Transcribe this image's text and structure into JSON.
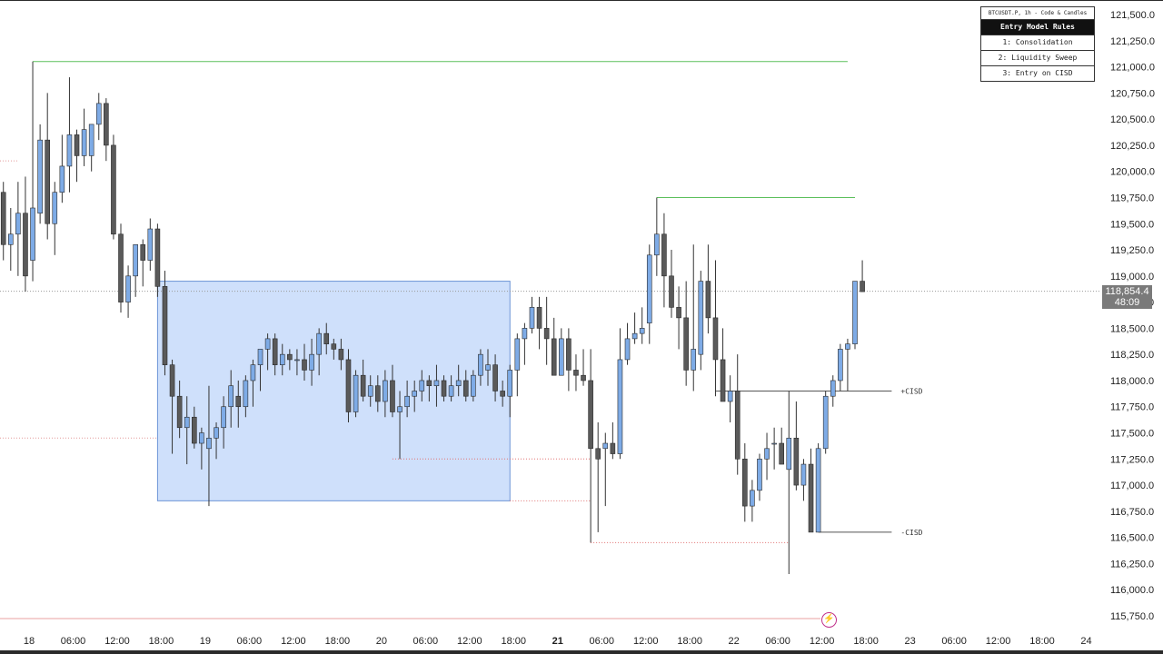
{
  "chart_data": {
    "type": "candlestick",
    "title": "BTCUSDT.P, 1h - Code & Candles",
    "ylim": [
      115750,
      121500
    ],
    "y_ticks": [
      "121,500.0",
      "121,250.0",
      "121,000.0",
      "120,750.0",
      "120,500.0",
      "120,250.0",
      "120,000.0",
      "119,750.0",
      "119,500.0",
      "119,250.0",
      "119,000.0",
      "118,750.0",
      "118,500.0",
      "118,250.0",
      "118,000.0",
      "117,750.0",
      "117,500.0",
      "117,250.0",
      "117,000.0",
      "116,750.0",
      "116,500.0",
      "116,250.0",
      "116,000.0",
      "115,750.0"
    ],
    "y_tick_values": [
      121500,
      121250,
      121000,
      120750,
      120500,
      120250,
      120000,
      119750,
      119500,
      119250,
      119000,
      118750,
      118500,
      118250,
      118000,
      117750,
      117500,
      117250,
      117000,
      116750,
      116500,
      116250,
      116000,
      115750
    ],
    "x_ticks": [
      "18",
      "06:00",
      "12:00",
      "18:00",
      "19",
      "06:00",
      "12:00",
      "18:00",
      "20",
      "06:00",
      "12:00",
      "18:00",
      "21",
      "06:00",
      "12:00",
      "18:00",
      "22",
      "06:00",
      "12:00",
      "18:00",
      "23",
      "06:00",
      "12:00",
      "18:00",
      "24"
    ],
    "x_tick_hours": [
      0,
      6,
      12,
      18,
      24,
      30,
      36,
      42,
      48,
      54,
      60,
      66,
      72,
      78,
      84,
      90,
      96,
      102,
      108,
      114,
      120,
      126,
      132,
      138,
      144
    ],
    "x_tick_bold": [
      false,
      false,
      false,
      false,
      false,
      false,
      false,
      false,
      false,
      false,
      false,
      false,
      true,
      false,
      false,
      false,
      false,
      false,
      false,
      false,
      false,
      false,
      false,
      false,
      false
    ],
    "current_price": "118,854.4",
    "countdown": "48:09",
    "current_price_value": 118854,
    "candles": [
      [
        -3.5,
        119800,
        119900,
        119150,
        119300
      ],
      [
        -2.5,
        119300,
        119650,
        119050,
        119400
      ],
      [
        -1.5,
        119400,
        119900,
        119000,
        119600
      ],
      [
        -0.5,
        119600,
        119950,
        118850,
        119000
      ],
      [
        0.5,
        119150,
        121050,
        118950,
        119650
      ],
      [
        1.5,
        119600,
        120450,
        119500,
        120300
      ],
      [
        2.5,
        120300,
        120750,
        119350,
        119500
      ],
      [
        3.5,
        119500,
        119900,
        119200,
        119800
      ],
      [
        4.5,
        119800,
        120350,
        119700,
        120050
      ],
      [
        5.5,
        120050,
        120900,
        119800,
        120350
      ],
      [
        6.5,
        120350,
        120400,
        119900,
        120150
      ],
      [
        7.5,
        120150,
        120600,
        120050,
        120400
      ],
      [
        8.5,
        120150,
        120450,
        120000,
        120450
      ],
      [
        9.5,
        120450,
        120750,
        120300,
        120650
      ],
      [
        10.5,
        120650,
        120700,
        120100,
        120250
      ],
      [
        11.5,
        120250,
        120350,
        119350,
        119400
      ],
      [
        12.5,
        119400,
        119500,
        118650,
        118750
      ],
      [
        13.5,
        118750,
        119100,
        118600,
        119000
      ],
      [
        14.5,
        119000,
        119300,
        118800,
        119300
      ],
      [
        15.5,
        119300,
        119350,
        118900,
        119150
      ],
      [
        16.5,
        119150,
        119550,
        119050,
        119450
      ],
      [
        17.5,
        119450,
        119500,
        118800,
        118900
      ],
      [
        18.5,
        118900,
        119050,
        118050,
        118150
      ],
      [
        19.5,
        118150,
        118200,
        117300,
        117850
      ],
      [
        20.5,
        117850,
        118000,
        117450,
        117550
      ],
      [
        21.5,
        117550,
        117850,
        117200,
        117650
      ],
      [
        22.5,
        117650,
        117750,
        117350,
        117400
      ],
      [
        23.5,
        117400,
        117550,
        117150,
        117500
      ],
      [
        24.5,
        117350,
        117950,
        116800,
        117450
      ],
      [
        25.5,
        117450,
        117600,
        117250,
        117550
      ],
      [
        26.5,
        117550,
        117850,
        117350,
        117750
      ],
      [
        27.5,
        117750,
        118100,
        117550,
        117950
      ],
      [
        28.5,
        117850,
        118000,
        117550,
        117750
      ],
      [
        29.5,
        117750,
        118050,
        117650,
        118000
      ],
      [
        30.5,
        118000,
        118200,
        117750,
        118150
      ],
      [
        31.5,
        118150,
        118300,
        117900,
        118300
      ],
      [
        32.5,
        118300,
        118450,
        118100,
        118400
      ],
      [
        33.5,
        118400,
        118450,
        118050,
        118150
      ],
      [
        34.5,
        118150,
        118350,
        118050,
        118250
      ],
      [
        35.5,
        118250,
        118300,
        118100,
        118200
      ],
      [
        36.5,
        118200,
        118300,
        118050,
        118200
      ],
      [
        37.5,
        118200,
        118350,
        118000,
        118100
      ],
      [
        38.5,
        118100,
        118400,
        117950,
        118250
      ],
      [
        39.5,
        118250,
        118500,
        118050,
        118450
      ],
      [
        40.5,
        118450,
        118550,
        118250,
        118350
      ],
      [
        41.5,
        118350,
        118400,
        118200,
        118300
      ],
      [
        42.5,
        118300,
        118400,
        118100,
        118200
      ],
      [
        43.5,
        118200,
        118300,
        117600,
        117700
      ],
      [
        44.5,
        117700,
        118100,
        117650,
        118050
      ],
      [
        45.5,
        118050,
        118200,
        117800,
        117850
      ],
      [
        46.5,
        117850,
        118050,
        117750,
        117950
      ],
      [
        47.5,
        117950,
        118050,
        117700,
        117800
      ],
      [
        48.5,
        117800,
        118100,
        117650,
        118000
      ],
      [
        49.5,
        118000,
        118150,
        117650,
        117700
      ],
      [
        50.5,
        117700,
        117900,
        117250,
        117750
      ],
      [
        51.5,
        117750,
        118000,
        117650,
        117850
      ],
      [
        52.5,
        117850,
        118000,
        117700,
        117900
      ],
      [
        53.5,
        117900,
        118100,
        117800,
        118000
      ],
      [
        54.5,
        118000,
        118050,
        117800,
        117950
      ],
      [
        55.5,
        117950,
        118150,
        117750,
        118000
      ],
      [
        56.5,
        118000,
        118050,
        117800,
        117850
      ],
      [
        57.5,
        117850,
        118050,
        117800,
        117950
      ],
      [
        58.5,
        117950,
        118150,
        117850,
        118000
      ],
      [
        59.5,
        118000,
        118100,
        117800,
        117850
      ],
      [
        60.5,
        117850,
        118100,
        117800,
        118050
      ],
      [
        61.5,
        118050,
        118300,
        117950,
        118250
      ],
      [
        62.5,
        118100,
        118300,
        117950,
        118150
      ],
      [
        63.5,
        118150,
        118250,
        117800,
        117900
      ],
      [
        64.5,
        117900,
        118000,
        117750,
        117850
      ],
      [
        65.5,
        117850,
        118150,
        117650,
        118100
      ],
      [
        66.5,
        118100,
        118450,
        117850,
        118400
      ],
      [
        67.5,
        118400,
        118550,
        118150,
        118500
      ],
      [
        68.5,
        118500,
        118800,
        118450,
        118700
      ],
      [
        69.5,
        118700,
        118800,
        118300,
        118500
      ],
      [
        70.5,
        118500,
        118800,
        118150,
        118400
      ],
      [
        71.5,
        118400,
        118600,
        118050,
        118050
      ],
      [
        72.5,
        118050,
        118500,
        118050,
        118400
      ],
      [
        73.5,
        118400,
        118500,
        117900,
        118100
      ],
      [
        74.5,
        118100,
        118250,
        117900,
        118050
      ],
      [
        75.5,
        118050,
        118300,
        117950,
        118000
      ],
      [
        76.5,
        118000,
        118300,
        116450,
        117350
      ],
      [
        77.5,
        117350,
        117600,
        116550,
        117250
      ],
      [
        78.5,
        117350,
        117500,
        116800,
        117400
      ],
      [
        79.5,
        117400,
        117600,
        117250,
        117300
      ],
      [
        80.5,
        117300,
        118500,
        117250,
        118200
      ],
      [
        81.5,
        118200,
        118550,
        118150,
        118400
      ],
      [
        82.5,
        118400,
        118650,
        118350,
        118450
      ],
      [
        83.5,
        118450,
        118700,
        118350,
        118500
      ],
      [
        84.5,
        118550,
        119300,
        118350,
        119200
      ],
      [
        85.5,
        119200,
        119750,
        119000,
        119400
      ],
      [
        86.5,
        119400,
        119600,
        118700,
        119000
      ],
      [
        87.5,
        119000,
        119250,
        118600,
        118700
      ],
      [
        88.5,
        118700,
        118900,
        118300,
        118600
      ],
      [
        89.5,
        118600,
        118950,
        117950,
        118100
      ],
      [
        90.5,
        118100,
        119300,
        117900,
        118300
      ],
      [
        91.5,
        118250,
        119050,
        118100,
        118950
      ],
      [
        92.5,
        118950,
        119300,
        118450,
        118600
      ],
      [
        93.5,
        118600,
        119150,
        117850,
        118200
      ],
      [
        94.5,
        118200,
        118500,
        117800,
        117800
      ],
      [
        95.5,
        117800,
        118050,
        117600,
        117900
      ],
      [
        96.5,
        117900,
        118250,
        117100,
        117250
      ],
      [
        97.5,
        117250,
        117400,
        116650,
        116800
      ],
      [
        98.5,
        116800,
        117050,
        116650,
        116950
      ],
      [
        99.5,
        116950,
        117300,
        116850,
        117250
      ],
      [
        100.5,
        117250,
        117500,
        117050,
        117350
      ],
      [
        101.5,
        117400,
        117550,
        117150,
        117400
      ],
      [
        102.5,
        117400,
        117550,
        117200,
        117200
      ],
      [
        103.5,
        117150,
        117900,
        116150,
        117450
      ],
      [
        104.5,
        117450,
        117800,
        116950,
        117000
      ],
      [
        105.5,
        117000,
        117250,
        116850,
        117200
      ],
      [
        106.5,
        117200,
        117350,
        116550,
        116550
      ],
      [
        107.5,
        116550,
        117400,
        116550,
        117350
      ],
      [
        108.5,
        117350,
        117900,
        117300,
        117850
      ],
      [
        109.5,
        117850,
        118050,
        117750,
        118000
      ],
      [
        110.5,
        118000,
        118350,
        117900,
        118300
      ],
      [
        111.5,
        118300,
        118400,
        117900,
        118350
      ],
      [
        112.5,
        118350,
        118900,
        118300,
        118950
      ],
      [
        113.5,
        118950,
        119150,
        118850,
        118850
      ]
    ],
    "consolidation_box": {
      "x0": 17.5,
      "x1": 65.5,
      "y0": 116850,
      "y1": 118950
    },
    "swing_highs": [
      {
        "x0": 0.5,
        "x1": 111.5,
        "y": 121050
      },
      {
        "x0": 85.5,
        "x1": 112.5,
        "y": 119750
      }
    ],
    "swept_lows": [
      {
        "x0": 49.5,
        "x1": 76.5,
        "y": 117250
      },
      {
        "x0": 65.5,
        "x1": 76.5,
        "y": 116850
      },
      {
        "x0": 76.5,
        "x1": 103.5,
        "y": 116450
      }
    ],
    "faint_levels": [
      {
        "x0": -4,
        "x1": 17.5,
        "y": 117450
      },
      {
        "x0": -4,
        "x1": -1.5,
        "y": 120100
      }
    ],
    "cisd_levels": [
      {
        "label": "+CISD",
        "x0": 93.5,
        "x1": 117.5,
        "y": 117900
      },
      {
        "label": "-CISD",
        "x0": 107.5,
        "x1": 117.5,
        "y": 116550
      }
    ]
  },
  "rules_table": {
    "title": "BTCUSDT.P, 1h - Code & Candles",
    "header": "Entry Model Rules",
    "rows": [
      "1: Consolidation",
      "2: Liquidity Sweep",
      "3: Entry on CISD"
    ]
  },
  "colors": {
    "bull": "#7eabe6",
    "bear": "#5a5a5a",
    "wick": "#333333",
    "box_fill": "#cfe0fb",
    "box_stroke": "#6d94d6",
    "high_line": "#5bbf5b",
    "low_line": "#e07070",
    "cisd_line": "#555555"
  },
  "bolt_icon": "lightning-icon"
}
